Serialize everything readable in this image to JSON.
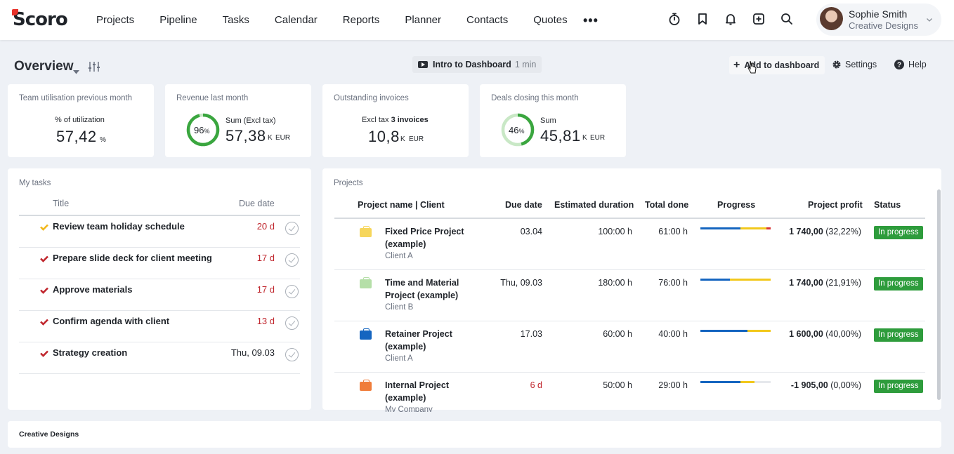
{
  "app": {
    "logo_text": "Scoro"
  },
  "nav": {
    "items": [
      "Projects",
      "Pipeline",
      "Tasks",
      "Calendar",
      "Reports",
      "Planner",
      "Contacts",
      "Quotes"
    ],
    "more": "•••"
  },
  "user": {
    "name": "Sophie Smith",
    "org": "Creative Designs"
  },
  "header": {
    "title": "Overview",
    "intro_label": "Intro to Dashboard",
    "intro_duration": "1 min",
    "add_label": "Add to dashboard",
    "settings_label": "Settings",
    "help_label": "Help"
  },
  "kpis": [
    {
      "label": "Team utilisation previous month",
      "sub": "% of utilization",
      "value": "57,42",
      "unit": "%"
    },
    {
      "label": "Revenue last month",
      "sub": "Sum (Excl tax)",
      "value": "57,38",
      "unit": "K",
      "currency": "EUR",
      "percent": "96",
      "percent_sign": "%",
      "fraction": 0.96
    },
    {
      "label": "Outstanding invoices",
      "sub_prefix": "Excl tax",
      "sub_bold": "3 invoices",
      "value": "10,8",
      "unit": "K",
      "currency": "EUR"
    },
    {
      "label": "Deals closing this month",
      "sub": "Sum",
      "value": "45,81",
      "unit": "K",
      "currency": "EUR",
      "percent": "46",
      "percent_sign": "%",
      "fraction": 0.46
    }
  ],
  "tasks": {
    "section_label": "My tasks",
    "col_title": "Title",
    "col_due": "Due date",
    "rows": [
      {
        "title": "Review team holiday schedule",
        "due": "20 d",
        "check_color": "#f2b81c",
        "overdue": true
      },
      {
        "title": "Prepare slide deck for client meeting",
        "due": "17 d",
        "check_color": "#c0262d",
        "overdue": true
      },
      {
        "title": "Approve materials",
        "due": "17 d",
        "check_color": "#c0262d",
        "overdue": true
      },
      {
        "title": "Confirm agenda with client",
        "due": "13 d",
        "check_color": "#c0262d",
        "overdue": true
      },
      {
        "title": "Strategy creation",
        "due": "Thu, 09.03",
        "check_color": "#c0262d",
        "overdue": false
      }
    ]
  },
  "projects": {
    "section_label": "Projects",
    "columns": [
      "Project name | Client",
      "Due date",
      "Estimated duration",
      "Total done",
      "Progress",
      "Project profit",
      "Status"
    ],
    "rows": [
      {
        "name": "Fixed Price Project (example)",
        "client": "Client A",
        "due": "03.04",
        "due_overdue": false,
        "estimated": "100:00 h",
        "done": "61:00 h",
        "profit_value": "1 740,00",
        "profit_pct": "(32,22%)",
        "status": "In progress",
        "icon_color": "#f6d65c",
        "progress": [
          0.57,
          0.37,
          0.06
        ]
      },
      {
        "name": "Time and Material Project (example)",
        "client": "Client B",
        "due": "Thu, 09.03",
        "due_overdue": false,
        "estimated": "180:00 h",
        "done": "76:00 h",
        "profit_value": "1 740,00",
        "profit_pct": "(21,91%)",
        "status": "In progress",
        "icon_color": "#b5dfa8",
        "progress": [
          0.42,
          0.58,
          0
        ]
      },
      {
        "name": "Retainer Project (example)",
        "client": "Client A",
        "due": "17.03",
        "due_overdue": false,
        "estimated": "60:00 h",
        "done": "40:00 h",
        "profit_value": "1 600,00",
        "profit_pct": "(40,00%)",
        "status": "In progress",
        "icon_color": "#1565c0",
        "progress": [
          0.67,
          0.33,
          0
        ]
      },
      {
        "name": "Internal Project (example)",
        "client": "My Company",
        "due": "6 d",
        "due_overdue": true,
        "estimated": "50:00 h",
        "done": "29:00 h",
        "profit_value": "-1 905,00",
        "profit_pct": "(0,00%)",
        "status": "In progress",
        "icon_color": "#f07d3a",
        "progress": [
          0.57,
          0.2,
          0
        ]
      }
    ]
  },
  "footer": {
    "label": "Creative Designs"
  },
  "colors": {
    "accent_green": "#2e9c3c",
    "progress_blue": "#1565c0",
    "progress_yellow": "#f2c81c",
    "progress_red": "#d93636",
    "overdue_red": "#c0262d"
  }
}
